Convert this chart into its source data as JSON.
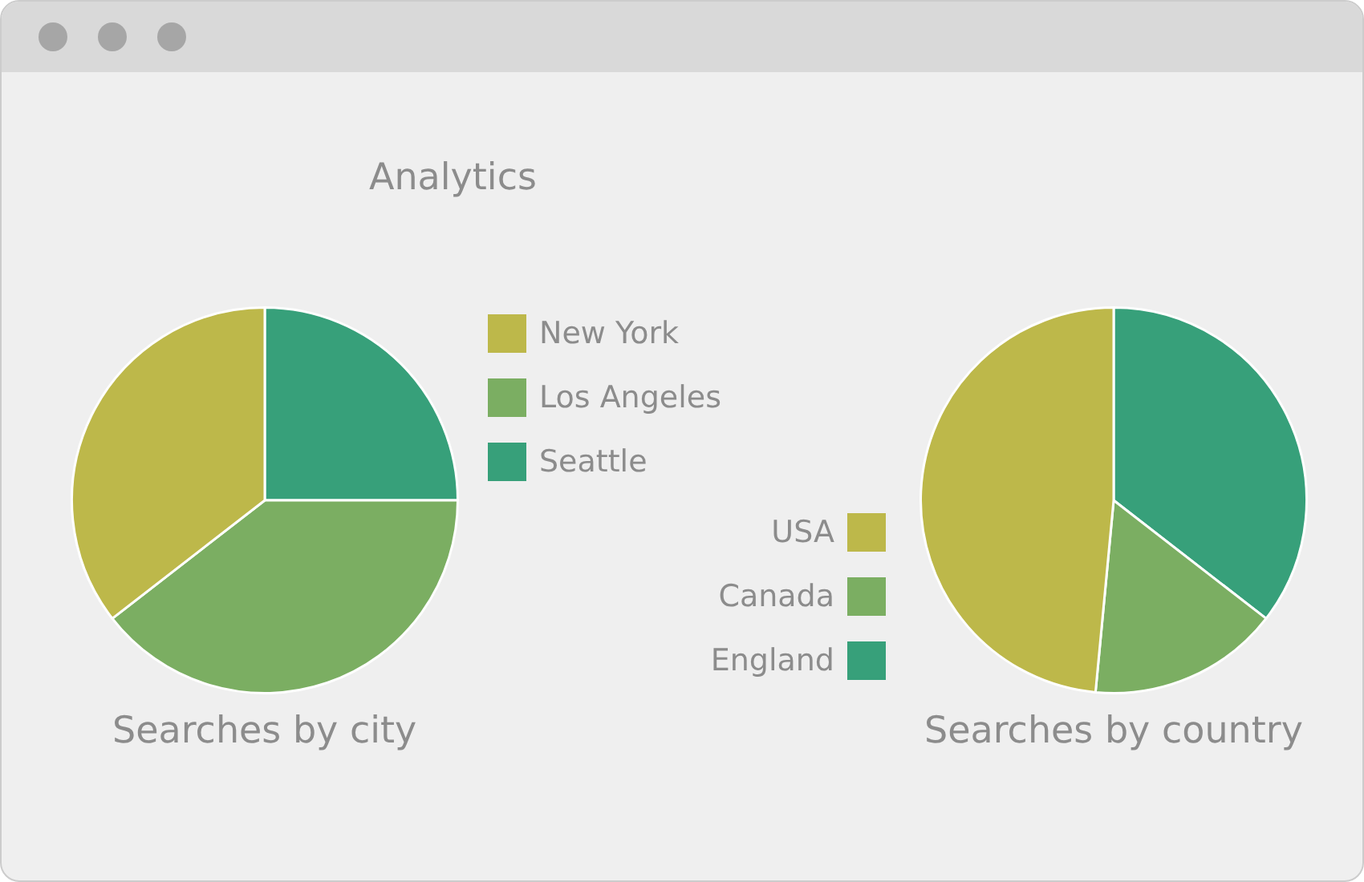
{
  "chart_data": [
    {
      "type": "pie",
      "title": "Searches by city",
      "annotations": [
        "Analytics"
      ],
      "categories": [
        "New York",
        "Los Angeles",
        "Seattle"
      ],
      "values": [
        35.5,
        39.5,
        25
      ],
      "colors": [
        "#bdb84a",
        "#7bae62",
        "#37a07a"
      ],
      "legend": "right"
    },
    {
      "type": "pie",
      "title": "Searches by country",
      "categories": [
        "USA",
        "Canada",
        "England"
      ],
      "values": [
        48.5,
        16,
        35.5
      ],
      "colors": [
        "#bdb84a",
        "#7bae62",
        "#37a07a"
      ],
      "legend": "left"
    }
  ]
}
